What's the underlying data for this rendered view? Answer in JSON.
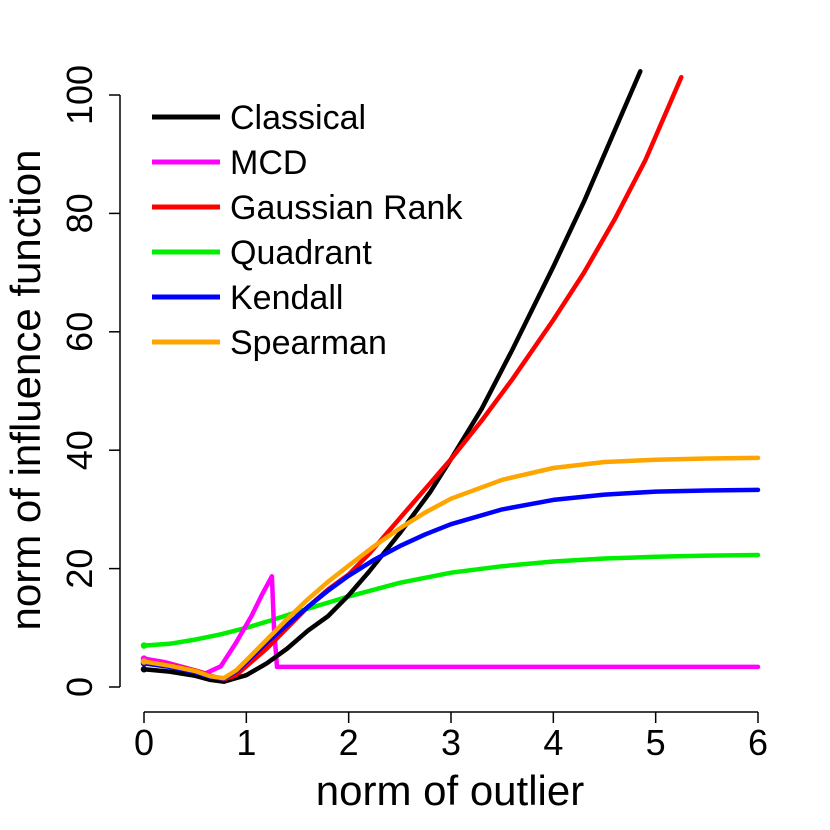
{
  "chart_data": {
    "type": "line",
    "xlabel": "norm of outlier",
    "ylabel": "norm of influence function",
    "xlim": [
      0,
      6
    ],
    "ylim": [
      0,
      100
    ],
    "x_ticks": [
      "0",
      "1",
      "2",
      "3",
      "4",
      "5",
      "6"
    ],
    "y_ticks": [
      "0",
      "20",
      "40",
      "60",
      "80",
      "100"
    ],
    "grid": false,
    "legend_position": "top-left",
    "series": [
      {
        "name": "Classical",
        "color": "#000000",
        "x": [
          0,
          0.25,
          0.5,
          0.65,
          0.78,
          0.9,
          1.0,
          1.2,
          1.4,
          1.6,
          1.8,
          2.0,
          2.2,
          2.5,
          2.8,
          3.0,
          3.3,
          3.6,
          4.0,
          4.3,
          4.6,
          4.85
        ],
        "y": [
          3.0,
          2.6,
          1.9,
          1.2,
          0.9,
          1.5,
          2.0,
          4.0,
          6.5,
          9.5,
          12.0,
          15.5,
          19.5,
          26.0,
          33.0,
          38.5,
          47.0,
          57.0,
          71.0,
          82.0,
          94.0,
          104.0
        ]
      },
      {
        "name": "MCD",
        "color": "#ff00ff",
        "x": [
          0,
          0.2,
          0.4,
          0.6,
          0.75,
          0.9,
          1.05,
          1.15,
          1.25,
          1.27,
          1.3,
          2.0,
          4.0,
          6.0
        ],
        "y": [
          4.8,
          4.2,
          3.3,
          2.3,
          3.5,
          7.5,
          12.0,
          15.5,
          18.7,
          10.0,
          3.4,
          3.4,
          3.4,
          3.4
        ]
      },
      {
        "name": "Gaussian Rank",
        "color": "#ff0000",
        "x": [
          0,
          0.25,
          0.5,
          0.65,
          0.78,
          0.9,
          1.0,
          1.2,
          1.4,
          1.6,
          1.8,
          2.0,
          2.2,
          2.5,
          2.8,
          3.0,
          3.3,
          3.6,
          4.0,
          4.3,
          4.6,
          4.9,
          5.25
        ],
        "y": [
          4.3,
          3.7,
          2.8,
          1.9,
          1.3,
          2.0,
          3.5,
          6.5,
          10.0,
          13.5,
          16.5,
          19.0,
          22.5,
          28.5,
          34.5,
          38.5,
          45.0,
          52.0,
          62.0,
          70.0,
          79.0,
          89.0,
          103.0
        ]
      },
      {
        "name": "Quadrant",
        "color": "#00ee00",
        "x": [
          0,
          0.25,
          0.5,
          0.75,
          1.0,
          1.25,
          1.5,
          1.75,
          2.0,
          2.5,
          3.0,
          3.5,
          4.0,
          4.5,
          5.0,
          5.5,
          6.0
        ],
        "y": [
          7.0,
          7.3,
          8.0,
          8.9,
          10.0,
          11.3,
          12.7,
          14.0,
          15.3,
          17.6,
          19.3,
          20.4,
          21.2,
          21.7,
          22.0,
          22.2,
          22.3
        ]
      },
      {
        "name": "Kendall",
        "color": "#0000ff",
        "x": [
          0,
          0.25,
          0.5,
          0.65,
          0.78,
          0.9,
          1.0,
          1.2,
          1.4,
          1.6,
          1.8,
          2.0,
          2.25,
          2.5,
          2.75,
          3.0,
          3.5,
          4.0,
          4.5,
          5.0,
          5.5,
          6.0
        ],
        "y": [
          4.0,
          3.4,
          2.5,
          1.7,
          1.4,
          2.6,
          4.2,
          7.5,
          10.5,
          13.5,
          16.3,
          18.8,
          21.5,
          23.8,
          25.8,
          27.5,
          30.0,
          31.6,
          32.5,
          33.0,
          33.2,
          33.3
        ]
      },
      {
        "name": "Spearman",
        "color": "#ffa500",
        "x": [
          0,
          0.25,
          0.5,
          0.65,
          0.78,
          0.9,
          1.0,
          1.2,
          1.4,
          1.6,
          1.8,
          2.0,
          2.25,
          2.5,
          2.75,
          3.0,
          3.5,
          4.0,
          4.5,
          5.0,
          5.5,
          6.0
        ],
        "y": [
          4.3,
          3.6,
          2.7,
          1.8,
          1.5,
          2.8,
          4.5,
          8.0,
          11.5,
          14.8,
          17.8,
          20.5,
          23.8,
          26.8,
          29.5,
          31.8,
          35.0,
          37.0,
          38.0,
          38.4,
          38.6,
          38.7
        ]
      }
    ]
  }
}
